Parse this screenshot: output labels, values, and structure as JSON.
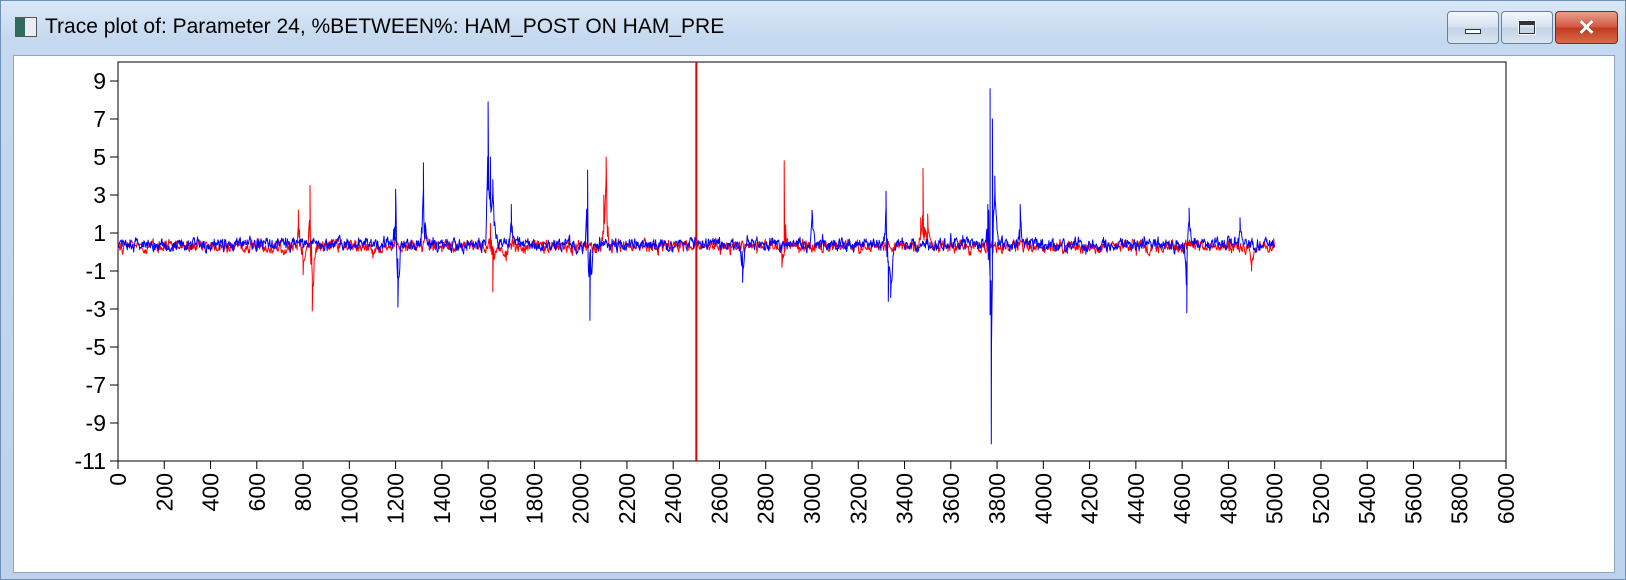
{
  "window": {
    "title": "Trace plot of: Parameter 24, %BETWEEN%: HAM_POST ON HAM_PRE",
    "icon": "app-window-icon",
    "controls": {
      "minimize_icon": "minimize-icon",
      "maximize_icon": "maximize-icon",
      "close_icon": "close-icon"
    }
  },
  "chart_data": {
    "type": "line",
    "title": "",
    "xlabel": "",
    "ylabel": "",
    "xlim": [
      0,
      6000
    ],
    "ylim": [
      -11,
      10
    ],
    "x_ticks": [
      0,
      200,
      400,
      600,
      800,
      1000,
      1200,
      1400,
      1600,
      1800,
      2000,
      2200,
      2400,
      2600,
      2800,
      3000,
      3200,
      3400,
      3600,
      3800,
      4000,
      4200,
      4400,
      4600,
      4800,
      5000,
      5200,
      5400,
      5600,
      5800,
      6000
    ],
    "y_ticks": [
      9,
      7,
      5,
      3,
      1,
      -1,
      -3,
      -5,
      -7,
      -9,
      -11
    ],
    "grid": false,
    "legend": "none",
    "vertical_marker": {
      "x": 2500,
      "color": "#e00000"
    },
    "series": [
      {
        "color": "#ff0000",
        "baseline": 0.3,
        "x_range": [
          0,
          5000
        ],
        "spikes": [
          [
            780,
            2.2
          ],
          [
            800,
            -1.2
          ],
          [
            830,
            3.5
          ],
          [
            840,
            -3.1
          ],
          [
            1330,
            1.2
          ],
          [
            1620,
            -2.1
          ],
          [
            1610,
            1.5
          ],
          [
            2100,
            3.0
          ],
          [
            2110,
            5.0
          ],
          [
            2880,
            4.8
          ],
          [
            2870,
            -0.8
          ],
          [
            3480,
            4.4
          ],
          [
            3470,
            1.8
          ],
          [
            3500,
            2.0
          ],
          [
            4900,
            -1.0
          ]
        ]
      },
      {
        "color": "#0000ff",
        "baseline": 0.4,
        "x_range": [
          0,
          5000
        ],
        "spikes": [
          [
            1200,
            3.3
          ],
          [
            1210,
            -2.9
          ],
          [
            1320,
            4.7
          ],
          [
            1600,
            7.9
          ],
          [
            1610,
            5.0
          ],
          [
            1620,
            3.8
          ],
          [
            1700,
            2.5
          ],
          [
            2030,
            4.3
          ],
          [
            2040,
            -3.6
          ],
          [
            2700,
            -1.6
          ],
          [
            3000,
            2.2
          ],
          [
            3320,
            3.2
          ],
          [
            3330,
            -2.6
          ],
          [
            3340,
            -2.4
          ],
          [
            3760,
            2.5
          ],
          [
            3770,
            8.6
          ],
          [
            3775,
            -10.1
          ],
          [
            3780,
            7.0
          ],
          [
            3790,
            4.0
          ],
          [
            3770,
            -3.3
          ],
          [
            3900,
            2.5
          ],
          [
            4620,
            -3.2
          ],
          [
            4630,
            2.3
          ],
          [
            4850,
            1.8
          ]
        ]
      }
    ]
  }
}
